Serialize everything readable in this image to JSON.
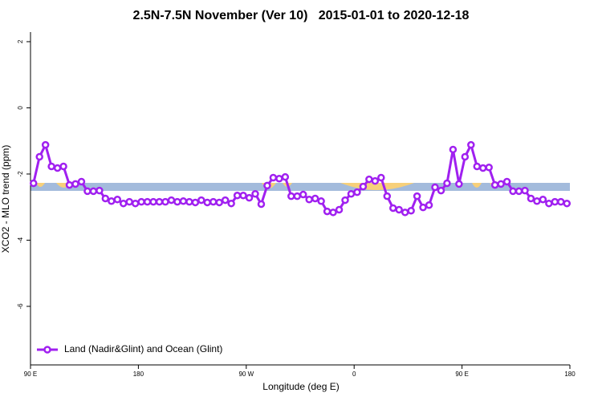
{
  "chart_data": {
    "type": "line",
    "title": "2.5N-7.5N November (Ver 10)   2015-01-01 to 2020-12-18",
    "x_label": "Longitude (deg E)",
    "y_label": "XCO2 - MLO trend (ppm)",
    "xlim": [
      90,
      540
    ],
    "ylim": [
      -7.77,
      2.29
    ],
    "xticks": [
      {
        "value": 90,
        "label": "90 E"
      },
      {
        "value": 180,
        "label": "180"
      },
      {
        "value": 270,
        "label": "90 W"
      },
      {
        "value": 360,
        "label": "0"
      },
      {
        "value": 450,
        "label": "90 E"
      },
      {
        "value": 540,
        "label": "180"
      }
    ],
    "yticks": [
      -6,
      -4,
      -2,
      0,
      2
    ],
    "legend": "bottom-left",
    "x": [
      92.5,
      97.5,
      102.5,
      107.5,
      112.5,
      117.5,
      122.5,
      127.5,
      132.5,
      137.5,
      142.5,
      147.5,
      152.5,
      157.5,
      162.5,
      167.5,
      172.5,
      177.5,
      182.5,
      187.5,
      192.5,
      197.5,
      202.5,
      207.5,
      212.5,
      217.5,
      222.5,
      227.5,
      232.5,
      237.5,
      242.5,
      247.5,
      252.5,
      257.5,
      262.5,
      267.5,
      272.5,
      277.5,
      282.5,
      287.5,
      292.5,
      297.5,
      302.5,
      307.5,
      312.5,
      317.5,
      322.5,
      327.5,
      332.5,
      337.5,
      342.5,
      347.5,
      352.5,
      357.5,
      362.5,
      367.5,
      372.5,
      377.5,
      382.5,
      387.5,
      392.5,
      397.5,
      402.5,
      407.5,
      412.5,
      417.5,
      422.5,
      427.5,
      432.5,
      437.5,
      442.5,
      447.5,
      452.5,
      457.5,
      462.5,
      467.5,
      472.5,
      477.5,
      482.5,
      487.5,
      492.5,
      497.5,
      502.5,
      507.5,
      512.5,
      517.5,
      522.5,
      527.5,
      532.5,
      537.5
    ],
    "series": [
      {
        "name": "Land (Nadir&Glint) and Ocean (Glint)",
        "color": "#a020f0",
        "values": [
          -2.28,
          -1.48,
          -1.12,
          -1.77,
          -1.82,
          -1.77,
          -2.33,
          -2.3,
          -2.23,
          -2.52,
          -2.52,
          -2.5,
          -2.74,
          -2.82,
          -2.77,
          -2.89,
          -2.84,
          -2.89,
          -2.84,
          -2.84,
          -2.84,
          -2.84,
          -2.84,
          -2.79,
          -2.84,
          -2.82,
          -2.84,
          -2.86,
          -2.79,
          -2.86,
          -2.84,
          -2.86,
          -2.79,
          -2.89,
          -2.65,
          -2.65,
          -2.72,
          -2.6,
          -2.91,
          -2.35,
          -2.11,
          -2.14,
          -2.09,
          -2.67,
          -2.67,
          -2.62,
          -2.77,
          -2.74,
          -2.82,
          -3.13,
          -3.16,
          -3.08,
          -2.79,
          -2.6,
          -2.55,
          -2.38,
          -2.16,
          -2.21,
          -2.11,
          -2.67,
          -3.03,
          -3.08,
          -3.16,
          -3.11,
          -2.67,
          -3.01,
          -2.94,
          -2.4,
          -2.5,
          -2.28,
          -1.26,
          -2.3,
          -1.48,
          -1.12,
          -1.77,
          -1.82,
          -1.8,
          -2.33,
          -2.3,
          -2.23,
          -2.52,
          -2.52,
          -2.5,
          -2.74,
          -2.82,
          -2.77,
          -2.89,
          -2.84,
          -2.84,
          -2.89
        ]
      }
    ]
  }
}
